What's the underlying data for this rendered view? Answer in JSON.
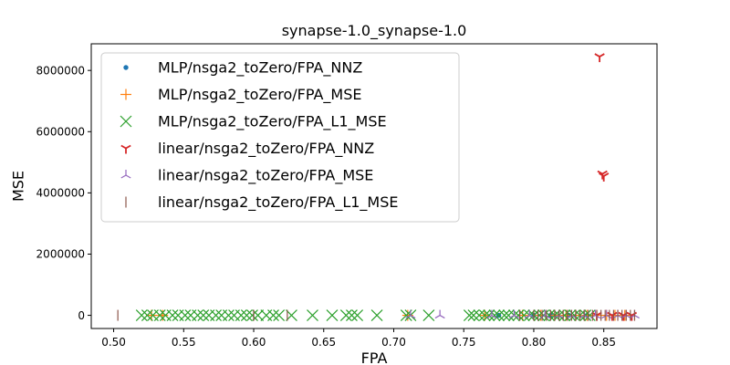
{
  "chart_data": {
    "type": "scatter",
    "title": "synapse-1.0_synapse-1.0",
    "xlabel": "FPA",
    "ylabel": "MSE",
    "xlim": [
      0.484,
      0.888
    ],
    "ylim": [
      -430000,
      8870000
    ],
    "x_ticks": [
      {
        "value": 0.5,
        "label": "0.50"
      },
      {
        "value": 0.55,
        "label": "0.55"
      },
      {
        "value": 0.6,
        "label": "0.60"
      },
      {
        "value": 0.65,
        "label": "0.65"
      },
      {
        "value": 0.7,
        "label": "0.70"
      },
      {
        "value": 0.75,
        "label": "0.75"
      },
      {
        "value": 0.8,
        "label": "0.80"
      },
      {
        "value": 0.85,
        "label": "0.85"
      }
    ],
    "y_ticks": [
      {
        "value": 0,
        "label": "0"
      },
      {
        "value": 2000000,
        "label": "2000000"
      },
      {
        "value": 4000000,
        "label": "4000000"
      },
      {
        "value": 6000000,
        "label": "6000000"
      },
      {
        "value": 8000000,
        "label": "8000000"
      }
    ],
    "grid": false,
    "legend_position": "upper-left",
    "series": [
      {
        "name": "MLP/nsga2_toZero/FPA_NNZ",
        "marker": "dot",
        "color": "#1f77b4",
        "points": [
          [
            0.775,
            0
          ],
          [
            0.8,
            0
          ],
          [
            0.812,
            0
          ],
          [
            0.825,
            0
          ],
          [
            0.838,
            0
          ]
        ]
      },
      {
        "name": "MLP/nsga2_toZero/FPA_MSE",
        "marker": "plus",
        "color": "#ff7f0e",
        "points": [
          [
            0.527,
            0
          ],
          [
            0.535,
            0
          ],
          [
            0.71,
            0
          ],
          [
            0.765,
            0
          ],
          [
            0.792,
            0
          ],
          [
            0.805,
            0
          ],
          [
            0.815,
            0
          ],
          [
            0.823,
            0
          ],
          [
            0.83,
            0
          ],
          [
            0.838,
            0
          ],
          [
            0.845,
            0
          ],
          [
            0.852,
            0
          ],
          [
            0.858,
            0
          ],
          [
            0.865,
            0
          ]
        ]
      },
      {
        "name": "MLP/nsga2_toZero/FPA_L1_MSE",
        "marker": "x",
        "color": "#2ca02c",
        "points": [
          [
            0.52,
            0
          ],
          [
            0.524,
            0
          ],
          [
            0.528,
            0
          ],
          [
            0.533,
            0
          ],
          [
            0.537,
            0
          ],
          [
            0.542,
            0
          ],
          [
            0.546,
            0
          ],
          [
            0.551,
            0
          ],
          [
            0.555,
            0
          ],
          [
            0.56,
            0
          ],
          [
            0.564,
            0
          ],
          [
            0.568,
            0
          ],
          [
            0.573,
            0
          ],
          [
            0.577,
            0
          ],
          [
            0.582,
            0
          ],
          [
            0.586,
            0
          ],
          [
            0.591,
            0
          ],
          [
            0.595,
            0
          ],
          [
            0.599,
            0
          ],
          [
            0.603,
            0
          ],
          [
            0.609,
            0
          ],
          [
            0.614,
            0
          ],
          [
            0.618,
            0
          ],
          [
            0.627,
            0
          ],
          [
            0.642,
            0
          ],
          [
            0.656,
            0
          ],
          [
            0.666,
            0
          ],
          [
            0.67,
            0
          ],
          [
            0.674,
            0
          ],
          [
            0.688,
            0
          ],
          [
            0.709,
            0
          ],
          [
            0.712,
            0
          ],
          [
            0.725,
            0
          ],
          [
            0.754,
            0
          ],
          [
            0.757,
            0
          ],
          [
            0.761,
            0
          ],
          [
            0.765,
            0
          ],
          [
            0.768,
            0
          ],
          [
            0.772,
            0
          ],
          [
            0.775,
            0
          ],
          [
            0.779,
            0
          ],
          [
            0.782,
            0
          ],
          [
            0.786,
            0
          ],
          [
            0.789,
            0
          ],
          [
            0.793,
            0
          ],
          [
            0.797,
            0
          ],
          [
            0.8,
            0
          ],
          [
            0.804,
            0
          ],
          [
            0.807,
            0
          ],
          [
            0.811,
            0
          ],
          [
            0.815,
            0
          ],
          [
            0.818,
            0
          ],
          [
            0.822,
            0
          ],
          [
            0.826,
            0
          ],
          [
            0.829,
            0
          ],
          [
            0.833,
            0
          ],
          [
            0.837,
            0
          ],
          [
            0.84,
            0
          ]
        ]
      },
      {
        "name": "linear/nsga2_toZero/FPA_NNZ",
        "marker": "tri_down",
        "color": "#d62728",
        "points": [
          [
            0.847,
            8450000
          ],
          [
            0.849,
            4620000
          ],
          [
            0.85,
            4550000
          ],
          [
            0.845,
            0
          ],
          [
            0.856,
            0
          ],
          [
            0.864,
            0
          ],
          [
            0.87,
            0
          ]
        ]
      },
      {
        "name": "linear/nsga2_toZero/FPA_MSE",
        "marker": "tri_up",
        "color": "#9467bd",
        "points": [
          [
            0.712,
            0
          ],
          [
            0.733,
            0
          ],
          [
            0.77,
            0
          ],
          [
            0.786,
            0
          ],
          [
            0.797,
            0
          ],
          [
            0.808,
            0
          ],
          [
            0.818,
            0
          ],
          [
            0.827,
            0
          ],
          [
            0.836,
            0
          ],
          [
            0.844,
            0
          ],
          [
            0.852,
            0
          ],
          [
            0.86,
            0
          ],
          [
            0.866,
            0
          ],
          [
            0.872,
            0
          ]
        ]
      },
      {
        "name": "linear/nsga2_toZero/FPA_L1_MSE",
        "marker": "vline",
        "color": "#8c564b",
        "points": [
          [
            0.503,
            0
          ],
          [
            0.6,
            0
          ],
          [
            0.624,
            0
          ],
          [
            0.79,
            0
          ],
          [
            0.8,
            0
          ],
          [
            0.803,
            0
          ],
          [
            0.806,
            0
          ],
          [
            0.809,
            0
          ],
          [
            0.812,
            0
          ],
          [
            0.815,
            0
          ],
          [
            0.818,
            0
          ],
          [
            0.821,
            0
          ],
          [
            0.824,
            0
          ],
          [
            0.827,
            0
          ],
          [
            0.83,
            0
          ],
          [
            0.833,
            0
          ],
          [
            0.836,
            0
          ],
          [
            0.839,
            0
          ],
          [
            0.842,
            0
          ],
          [
            0.845,
            0
          ],
          [
            0.848,
            0
          ],
          [
            0.851,
            0
          ],
          [
            0.854,
            0
          ],
          [
            0.857,
            0
          ],
          [
            0.86,
            0
          ],
          [
            0.863,
            0
          ],
          [
            0.866,
            0
          ],
          [
            0.869,
            0
          ],
          [
            0.872,
            0
          ]
        ]
      }
    ]
  }
}
